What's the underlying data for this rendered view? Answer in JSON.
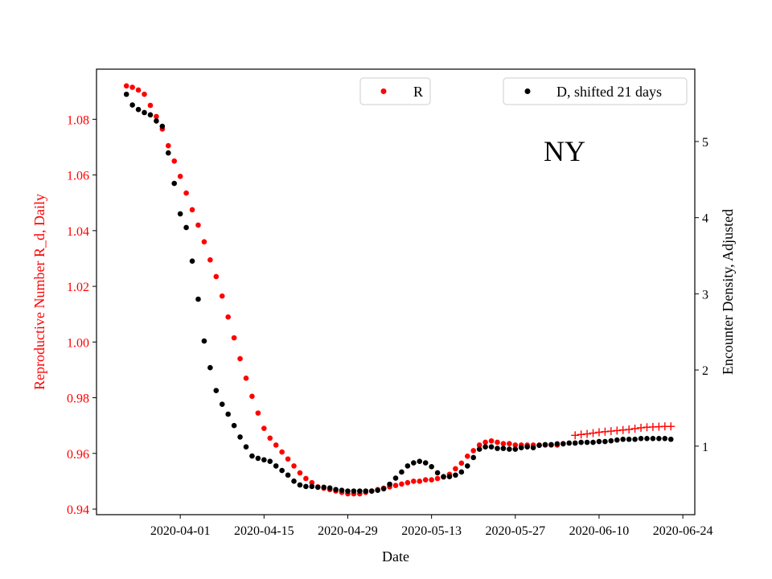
{
  "chart_data": {
    "type": "scatter",
    "annotation": "NY",
    "xlabel": "Date",
    "ylabel_left": "Reproductive Number R_d, Daily",
    "ylabel_right": "Encounter Density, Adjusted",
    "x_ticks": [
      "2020-04-01",
      "2020-04-15",
      "2020-04-29",
      "2020-05-13",
      "2020-05-27",
      "2020-06-10",
      "2020-06-24"
    ],
    "y_left_ticks": [
      "0.94",
      "0.96",
      "0.98",
      "1.00",
      "1.02",
      "1.04",
      "1.06",
      "1.08"
    ],
    "y_right_ticks": [
      "1",
      "2",
      "3",
      "4",
      "5"
    ],
    "x_range": [
      "2020-03-18",
      "2020-06-26"
    ],
    "y_left_range": [
      0.938,
      1.098
    ],
    "y_right_range": [
      0.1,
      5.95
    ],
    "colors": {
      "R": "#ff0000",
      "D": "#000000",
      "left_axis": "#ff0000"
    },
    "legend": [
      {
        "label": "R",
        "marker": "dot",
        "color": "#ff0000",
        "placement": "top-center"
      },
      {
        "label": "D, shifted 21 days",
        "marker": "dot",
        "color": "#000000",
        "placement": "top-right"
      }
    ],
    "series": [
      {
        "name": "R",
        "axis": "left",
        "color": "#ff0000",
        "x": [
          "2020-03-23",
          "2020-03-24",
          "2020-03-25",
          "2020-03-26",
          "2020-03-27",
          "2020-03-28",
          "2020-03-29",
          "2020-03-30",
          "2020-03-31",
          "2020-04-01",
          "2020-04-02",
          "2020-04-03",
          "2020-04-04",
          "2020-04-05",
          "2020-04-06",
          "2020-04-07",
          "2020-04-08",
          "2020-04-09",
          "2020-04-10",
          "2020-04-11",
          "2020-04-12",
          "2020-04-13",
          "2020-04-14",
          "2020-04-15",
          "2020-04-16",
          "2020-04-17",
          "2020-04-18",
          "2020-04-19",
          "2020-04-20",
          "2020-04-21",
          "2020-04-22",
          "2020-04-23",
          "2020-04-24",
          "2020-04-25",
          "2020-04-26",
          "2020-04-27",
          "2020-04-28",
          "2020-04-29",
          "2020-04-30",
          "2020-05-01",
          "2020-05-02",
          "2020-05-03",
          "2020-05-04",
          "2020-05-05",
          "2020-05-06",
          "2020-05-07",
          "2020-05-08",
          "2020-05-09",
          "2020-05-10",
          "2020-05-11",
          "2020-05-12",
          "2020-05-13",
          "2020-05-14",
          "2020-05-15",
          "2020-05-16",
          "2020-05-17",
          "2020-05-18",
          "2020-05-19",
          "2020-05-20",
          "2020-05-21",
          "2020-05-22",
          "2020-05-23",
          "2020-05-24",
          "2020-05-25",
          "2020-05-26",
          "2020-05-27",
          "2020-05-28",
          "2020-05-29",
          "2020-05-30",
          "2020-05-31",
          "2020-06-01",
          "2020-06-02",
          "2020-06-03",
          "2020-06-04"
        ],
        "y": [
          1.092,
          1.0915,
          1.0905,
          1.089,
          1.085,
          1.081,
          1.0765,
          1.0705,
          1.065,
          1.0595,
          1.0535,
          1.0475,
          1.042,
          1.036,
          1.0295,
          1.0235,
          1.0165,
          1.009,
          1.0015,
          0.994,
          0.987,
          0.9805,
          0.9745,
          0.969,
          0.9655,
          0.963,
          0.9605,
          0.958,
          0.9555,
          0.953,
          0.951,
          0.9495,
          0.948,
          0.9475,
          0.947,
          0.9465,
          0.946,
          0.9455,
          0.9455,
          0.9455,
          0.946,
          0.9465,
          0.947,
          0.9475,
          0.948,
          0.9485,
          0.949,
          0.9495,
          0.95,
          0.95,
          0.9505,
          0.9505,
          0.951,
          0.9515,
          0.9525,
          0.9545,
          0.9565,
          0.959,
          0.961,
          0.963,
          0.964,
          0.9645,
          0.964,
          0.9635,
          0.9635,
          0.963,
          0.963,
          0.963,
          0.963,
          0.963,
          0.963,
          0.963,
          0.963,
          0.9635
        ]
      },
      {
        "name": "R (projected)",
        "axis": "left",
        "marker": "plus",
        "color": "#ff0000",
        "x": [
          "2020-06-06",
          "2020-06-07",
          "2020-06-08",
          "2020-06-09",
          "2020-06-10",
          "2020-06-11",
          "2020-06-12",
          "2020-06-13",
          "2020-06-14",
          "2020-06-15",
          "2020-06-16",
          "2020-06-17",
          "2020-06-18",
          "2020-06-19",
          "2020-06-20",
          "2020-06-21",
          "2020-06-22"
        ],
        "y": [
          0.9665,
          0.9668,
          0.967,
          0.9673,
          0.9676,
          0.9678,
          0.968,
          0.9682,
          0.9684,
          0.9686,
          0.9689,
          0.9692,
          0.9694,
          0.9695,
          0.9696,
          0.9697,
          0.9697
        ]
      },
      {
        "name": "D, shifted 21 days",
        "axis": "right",
        "color": "#000000",
        "x": [
          "2020-03-23",
          "2020-03-24",
          "2020-03-25",
          "2020-03-26",
          "2020-03-27",
          "2020-03-28",
          "2020-03-29",
          "2020-03-30",
          "2020-03-31",
          "2020-04-01",
          "2020-04-02",
          "2020-04-03",
          "2020-04-04",
          "2020-04-05",
          "2020-04-06",
          "2020-04-07",
          "2020-04-08",
          "2020-04-09",
          "2020-04-10",
          "2020-04-11",
          "2020-04-12",
          "2020-04-13",
          "2020-04-14",
          "2020-04-15",
          "2020-04-16",
          "2020-04-17",
          "2020-04-18",
          "2020-04-19",
          "2020-04-20",
          "2020-04-21",
          "2020-04-22",
          "2020-04-23",
          "2020-04-24",
          "2020-04-25",
          "2020-04-26",
          "2020-04-27",
          "2020-04-28",
          "2020-04-29",
          "2020-04-30",
          "2020-05-01",
          "2020-05-02",
          "2020-05-03",
          "2020-05-04",
          "2020-05-05",
          "2020-05-06",
          "2020-05-07",
          "2020-05-08",
          "2020-05-09",
          "2020-05-10",
          "2020-05-11",
          "2020-05-12",
          "2020-05-13",
          "2020-05-14",
          "2020-05-15",
          "2020-05-16",
          "2020-05-17",
          "2020-05-18",
          "2020-05-19",
          "2020-05-20",
          "2020-05-21",
          "2020-05-22",
          "2020-05-23",
          "2020-05-24",
          "2020-05-25",
          "2020-05-26",
          "2020-05-27",
          "2020-05-28",
          "2020-05-29",
          "2020-05-30",
          "2020-05-31",
          "2020-06-01",
          "2020-06-02",
          "2020-06-03",
          "2020-06-04",
          "2020-06-05",
          "2020-06-06",
          "2020-06-07",
          "2020-06-08",
          "2020-06-09",
          "2020-06-10",
          "2020-06-11",
          "2020-06-12",
          "2020-06-13",
          "2020-06-14",
          "2020-06-15",
          "2020-06-16",
          "2020-06-17",
          "2020-06-18",
          "2020-06-19",
          "2020-06-20",
          "2020-06-21",
          "2020-06-22"
        ],
        "y": [
          5.62,
          5.48,
          5.42,
          5.38,
          5.35,
          5.27,
          5.2,
          4.85,
          4.45,
          4.05,
          3.87,
          3.43,
          2.93,
          2.38,
          2.03,
          1.73,
          1.55,
          1.42,
          1.27,
          1.12,
          0.99,
          0.87,
          0.84,
          0.82,
          0.8,
          0.74,
          0.68,
          0.62,
          0.54,
          0.49,
          0.47,
          0.47,
          0.46,
          0.46,
          0.45,
          0.43,
          0.42,
          0.41,
          0.41,
          0.41,
          0.41,
          0.41,
          0.42,
          0.44,
          0.5,
          0.58,
          0.66,
          0.74,
          0.78,
          0.8,
          0.78,
          0.73,
          0.65,
          0.6,
          0.6,
          0.62,
          0.66,
          0.74,
          0.85,
          0.96,
          0.99,
          0.99,
          0.97,
          0.97,
          0.96,
          0.96,
          0.98,
          0.99,
          0.98,
          1.01,
          1.02,
          1.02,
          1.03,
          1.03,
          1.04,
          1.04,
          1.05,
          1.05,
          1.05,
          1.06,
          1.06,
          1.07,
          1.08,
          1.09,
          1.09,
          1.09,
          1.1,
          1.1,
          1.1,
          1.1,
          1.1,
          1.09
        ]
      }
    ]
  }
}
